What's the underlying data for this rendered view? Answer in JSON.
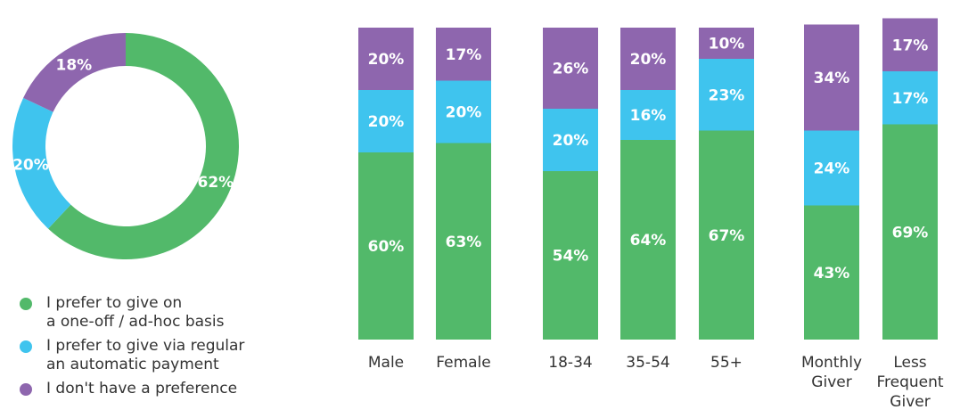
{
  "colors": {
    "one_off": "#52b96a",
    "regular": "#3fc4ee",
    "no_pref": "#8e66ae"
  },
  "legend": [
    {
      "key": "one_off",
      "label": "I prefer to give on\na one-off / ad-hoc basis"
    },
    {
      "key": "regular",
      "label": "I prefer to give via regular\nan automatic payment"
    },
    {
      "key": "no_pref",
      "label": "I don't have a preference"
    }
  ],
  "chart_data": [
    {
      "type": "pie",
      "donut": true,
      "series": [
        {
          "key": "one_off",
          "value": 62,
          "label": "62%"
        },
        {
          "key": "regular",
          "value": 20,
          "label": "20%"
        },
        {
          "key": "no_pref",
          "value": 18,
          "label": "18%"
        }
      ]
    },
    {
      "type": "bar",
      "stacked": true,
      "ylim": [
        0,
        100
      ],
      "categories": [
        "Male",
        "Female",
        "18-34",
        "35-54",
        "55+",
        "Monthly\nGiver",
        "Less\nFrequent\nGiver"
      ],
      "groups": [
        [
          0,
          1
        ],
        [
          2,
          3,
          4
        ],
        [
          5,
          6
        ]
      ],
      "series": [
        {
          "key": "one_off",
          "values": [
            60,
            63,
            54,
            64,
            67,
            43,
            69
          ],
          "labels": [
            "60%",
            "63%",
            "54%",
            "64%",
            "67%",
            "43%",
            "69%"
          ]
        },
        {
          "key": "regular",
          "values": [
            20,
            20,
            20,
            16,
            23,
            24,
            17
          ],
          "labels": [
            "20%",
            "20%",
            "20%",
            "16%",
            "23%",
            "24%",
            "17%"
          ]
        },
        {
          "key": "no_pref",
          "values": [
            20,
            17,
            26,
            20,
            10,
            34,
            17
          ],
          "labels": [
            "20%",
            "17%",
            "26%",
            "20%",
            "10%",
            "34%",
            "17%"
          ]
        }
      ]
    }
  ]
}
